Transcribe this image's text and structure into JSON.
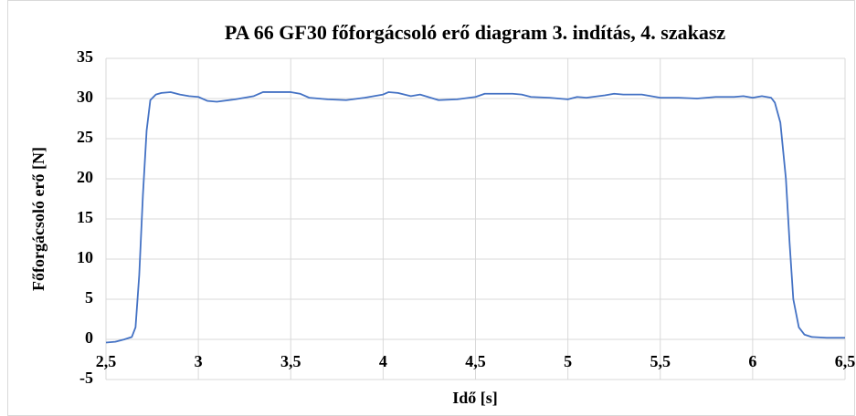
{
  "chart_data": {
    "type": "line",
    "title": "PA 66 GF30 főforgácsoló erő diagram 3. indítás, 4. szakasz",
    "x_label": "Idő [s]",
    "y_label": "Főforgácsoló erő [N]",
    "grid": true,
    "xlim": [
      2.5,
      6.5
    ],
    "xticks": [
      {
        "value": 2.5,
        "label": "2,5"
      },
      3,
      {
        "value": 3.5,
        "label": "3,5"
      },
      4,
      {
        "value": 4.5,
        "label": "4,5"
      },
      5,
      {
        "value": 5.5,
        "label": "5,5"
      },
      6,
      {
        "value": 6.5,
        "label": "6,5"
      }
    ],
    "ylim": [
      -5,
      35
    ],
    "yticks": [
      -5,
      0,
      5,
      10,
      15,
      20,
      25,
      30,
      35
    ],
    "x": [
      2.5,
      2.55,
      2.6,
      2.64,
      2.66,
      2.68,
      2.7,
      2.72,
      2.74,
      2.77,
      2.8,
      2.85,
      2.9,
      2.95,
      3.0,
      3.05,
      3.1,
      3.2,
      3.3,
      3.35,
      3.5,
      3.55,
      3.6,
      3.7,
      3.8,
      3.9,
      3.95,
      4.0,
      4.03,
      4.08,
      4.15,
      4.2,
      4.3,
      4.4,
      4.5,
      4.55,
      4.6,
      4.7,
      4.75,
      4.8,
      4.9,
      5.0,
      5.05,
      5.1,
      5.2,
      5.25,
      5.3,
      5.4,
      5.5,
      5.6,
      5.7,
      5.8,
      5.85,
      5.9,
      5.95,
      6.0,
      6.05,
      6.1,
      6.12,
      6.15,
      6.18,
      6.2,
      6.22,
      6.25,
      6.28,
      6.32,
      6.4,
      6.5
    ],
    "series": [
      {
        "name": "Főforgácsoló erő",
        "color": "#4472c4",
        "values": [
          -0.4,
          -0.3,
          0,
          0.3,
          1.5,
          8,
          18,
          26,
          29.8,
          30.5,
          30.7,
          30.8,
          30.5,
          30.3,
          30.2,
          29.7,
          29.6,
          29.9,
          30.3,
          30.8,
          30.8,
          30.6,
          30.1,
          29.9,
          29.8,
          30.1,
          30.3,
          30.5,
          30.8,
          30.7,
          30.3,
          30.5,
          29.8,
          29.9,
          30.2,
          30.6,
          30.6,
          30.6,
          30.5,
          30.2,
          30.1,
          29.9,
          30.2,
          30.1,
          30.4,
          30.6,
          30.5,
          30.5,
          30.1,
          30.1,
          30.0,
          30.2,
          30.2,
          30.2,
          30.3,
          30.1,
          30.3,
          30.1,
          29.5,
          27,
          20,
          12,
          5,
          1.5,
          0.6,
          0.3,
          0.2,
          0.2
        ]
      }
    ]
  }
}
